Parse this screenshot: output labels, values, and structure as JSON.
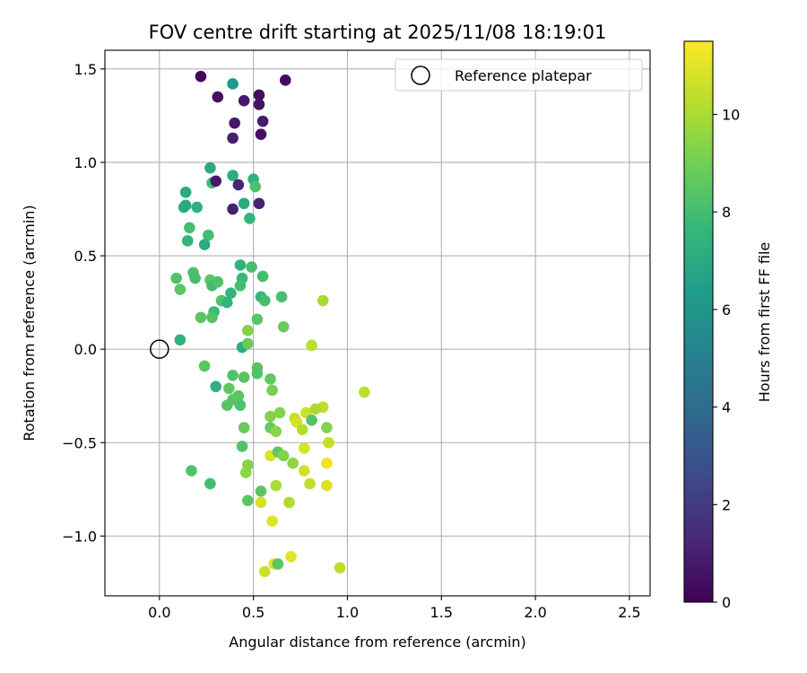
{
  "chart_data": {
    "type": "scatter",
    "title": "FOV centre drift starting at 2025/11/08 18:19:01",
    "xlabel": "Angular distance from reference (arcmin)",
    "ylabel": "Rotation from reference (arcmin)",
    "xlim": [
      -0.29,
      2.61
    ],
    "ylim": [
      -1.32,
      1.6
    ],
    "x_ticks": [
      0.0,
      0.5,
      1.0,
      1.5,
      2.0,
      2.5
    ],
    "x_tick_labels": [
      "0.0",
      "0.5",
      "1.0",
      "1.5",
      "2.0",
      "2.5"
    ],
    "y_ticks": [
      -1.0,
      -0.5,
      0.0,
      0.5,
      1.0,
      1.5
    ],
    "y_tick_labels": [
      "−1.0",
      "−0.5",
      "0.0",
      "0.5",
      "1.0",
      "1.5"
    ],
    "grid": true,
    "legend": {
      "position": "top-right",
      "entries": [
        "Reference platepar"
      ]
    },
    "reference_point": {
      "x": 0.0,
      "y": 0.0,
      "label": "Reference platepar"
    },
    "colorbar": {
      "label": "Hours from first FF file",
      "range": [
        0,
        11.5
      ],
      "ticks": [
        0,
        2,
        4,
        6,
        8,
        10
      ],
      "tick_labels": [
        "0",
        "2",
        "4",
        "6",
        "8",
        "10"
      ],
      "colormap": [
        "#440154",
        "#482878",
        "#3e4989",
        "#31688e",
        "#26828e",
        "#1f9e89",
        "#35b779",
        "#6ece58",
        "#b5de2b",
        "#fde725"
      ]
    },
    "series": [
      {
        "name": "FOV centre (hours from first FF file)",
        "points": [
          [
            0.22,
            1.46,
            0.2
          ],
          [
            0.39,
            1.42,
            6.2
          ],
          [
            0.31,
            1.35,
            0.5
          ],
          [
            0.45,
            1.33,
            0.8
          ],
          [
            0.53,
            1.36,
            0.4
          ],
          [
            0.53,
            1.31,
            0.6
          ],
          [
            0.67,
            1.44,
            0.3
          ],
          [
            0.4,
            1.21,
            0.7
          ],
          [
            0.55,
            1.22,
            0.9
          ],
          [
            0.39,
            1.13,
            1.0
          ],
          [
            0.54,
            1.15,
            0.5
          ],
          [
            0.27,
            0.97,
            7.0
          ],
          [
            0.39,
            0.93,
            7.2
          ],
          [
            0.28,
            0.89,
            8.0
          ],
          [
            0.3,
            0.9,
            0.8
          ],
          [
            0.42,
            0.88,
            1.2
          ],
          [
            0.5,
            0.91,
            7.3
          ],
          [
            0.51,
            0.87,
            8.2
          ],
          [
            0.14,
            0.84,
            7.0
          ],
          [
            0.13,
            0.76,
            7.1
          ],
          [
            0.14,
            0.77,
            7.0
          ],
          [
            0.2,
            0.76,
            7.4
          ],
          [
            0.39,
            0.75,
            1.0
          ],
          [
            0.45,
            0.78,
            7.1
          ],
          [
            0.53,
            0.78,
            1.1
          ],
          [
            0.48,
            0.7,
            7.5
          ],
          [
            0.16,
            0.65,
            8.0
          ],
          [
            0.15,
            0.58,
            7.5
          ],
          [
            0.26,
            0.61,
            8.0
          ],
          [
            0.24,
            0.56,
            7.1
          ],
          [
            0.43,
            0.45,
            7.4
          ],
          [
            0.49,
            0.44,
            8.0
          ],
          [
            0.55,
            0.39,
            8.0
          ],
          [
            0.18,
            0.41,
            8.2
          ],
          [
            0.09,
            0.38,
            8.3
          ],
          [
            0.19,
            0.38,
            8.0
          ],
          [
            0.11,
            0.32,
            8.5
          ],
          [
            0.27,
            0.37,
            8.5
          ],
          [
            0.28,
            0.34,
            8.0
          ],
          [
            0.31,
            0.36,
            8.2
          ],
          [
            0.44,
            0.38,
            7.7
          ],
          [
            0.38,
            0.3,
            7.5
          ],
          [
            0.43,
            0.34,
            8.0
          ],
          [
            0.54,
            0.28,
            7.6
          ],
          [
            0.56,
            0.26,
            8.0
          ],
          [
            0.65,
            0.28,
            8.1
          ],
          [
            0.33,
            0.26,
            8.2
          ],
          [
            0.36,
            0.25,
            7.5
          ],
          [
            0.29,
            0.2,
            7.8
          ],
          [
            0.28,
            0.17,
            8.3
          ],
          [
            0.22,
            0.17,
            8.5
          ],
          [
            0.52,
            0.16,
            8.4
          ],
          [
            0.66,
            0.12,
            8.8
          ],
          [
            0.47,
            0.1,
            9.3
          ],
          [
            0.87,
            0.26,
            10.0
          ],
          [
            0.11,
            0.05,
            7.4
          ],
          [
            0.44,
            0.01,
            7.2
          ],
          [
            0.47,
            0.03,
            8.8
          ],
          [
            0.81,
            0.02,
            10.3
          ],
          [
            0.24,
            -0.09,
            8.5
          ],
          [
            0.52,
            -0.1,
            8.5
          ],
          [
            0.39,
            -0.14,
            8.3
          ],
          [
            0.45,
            -0.15,
            8.4
          ],
          [
            0.52,
            -0.13,
            8.3
          ],
          [
            0.59,
            -0.16,
            8.7
          ],
          [
            0.3,
            -0.2,
            7.3
          ],
          [
            0.37,
            -0.21,
            8.6
          ],
          [
            0.6,
            -0.22,
            9.1
          ],
          [
            0.39,
            -0.27,
            8.5
          ],
          [
            0.42,
            -0.25,
            8.5
          ],
          [
            0.36,
            -0.3,
            8.4
          ],
          [
            0.43,
            -0.3,
            8.2
          ],
          [
            1.09,
            -0.23,
            10.3
          ],
          [
            0.59,
            -0.36,
            9.3
          ],
          [
            0.64,
            -0.34,
            9.3
          ],
          [
            0.72,
            -0.37,
            10.5
          ],
          [
            0.78,
            -0.34,
            10.6
          ],
          [
            0.87,
            -0.31,
            10.4
          ],
          [
            0.83,
            -0.32,
            10.0
          ],
          [
            0.73,
            -0.39,
            10.8
          ],
          [
            0.81,
            -0.38,
            8.3
          ],
          [
            0.89,
            -0.42,
            9.3
          ],
          [
            0.45,
            -0.42,
            8.8
          ],
          [
            0.59,
            -0.42,
            8.7
          ],
          [
            0.62,
            -0.44,
            9.4
          ],
          [
            0.76,
            -0.43,
            10.2
          ],
          [
            0.9,
            -0.5,
            10.5
          ],
          [
            0.44,
            -0.52,
            8.3
          ],
          [
            0.59,
            -0.57,
            10.9
          ],
          [
            0.63,
            -0.55,
            8.6
          ],
          [
            0.66,
            -0.57,
            9.3
          ],
          [
            0.77,
            -0.53,
            10.8
          ],
          [
            0.71,
            -0.61,
            9.5
          ],
          [
            0.89,
            -0.61,
            11.2
          ],
          [
            0.47,
            -0.62,
            9.3
          ],
          [
            0.17,
            -0.65,
            8.3
          ],
          [
            0.46,
            -0.66,
            9.5
          ],
          [
            0.77,
            -0.65,
            10.7
          ],
          [
            0.54,
            -0.76,
            8.5
          ],
          [
            0.62,
            -0.73,
            10.0
          ],
          [
            0.8,
            -0.72,
            10.4
          ],
          [
            0.89,
            -0.73,
            10.9
          ],
          [
            0.27,
            -0.72,
            8.0
          ],
          [
            0.47,
            -0.81,
            8.5
          ],
          [
            0.54,
            -0.82,
            10.8
          ],
          [
            0.69,
            -0.82,
            10.1
          ],
          [
            0.6,
            -0.92,
            11.0
          ],
          [
            0.7,
            -1.11,
            11.0
          ],
          [
            0.61,
            -1.15,
            10.9
          ],
          [
            0.63,
            -1.15,
            8.5
          ],
          [
            0.56,
            -1.19,
            10.6
          ],
          [
            0.96,
            -1.17,
            10.3
          ]
        ]
      }
    ]
  }
}
